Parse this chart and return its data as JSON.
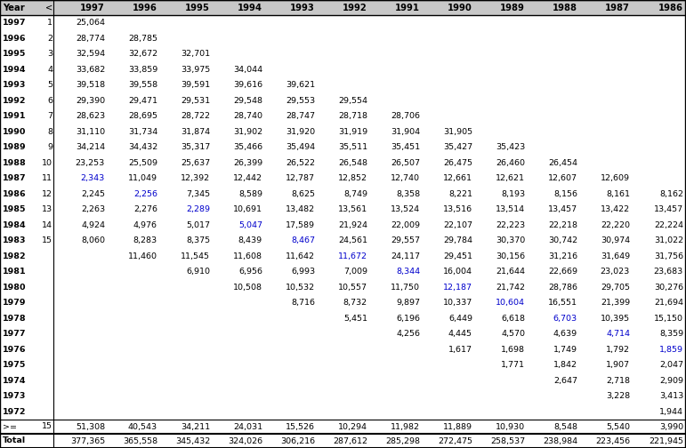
{
  "header_row": [
    "Year",
    "<",
    "1997",
    "1996",
    "1995",
    "1994",
    "1993",
    "1992",
    "1991",
    "1990",
    "1989",
    "1988",
    "1987",
    "1986"
  ],
  "rows": [
    {
      "year": "1997",
      "age": "1",
      "vals": [
        "25,064",
        "",
        "",
        "",
        "",
        "",
        "",
        "",
        "",
        "",
        "",
        ""
      ]
    },
    {
      "year": "1996",
      "age": "2",
      "vals": [
        "28,774",
        "28,785",
        "",
        "",
        "",
        "",
        "",
        "",
        "",
        "",
        "",
        ""
      ]
    },
    {
      "year": "1995",
      "age": "3",
      "vals": [
        "32,594",
        "32,672",
        "32,701",
        "",
        "",
        "",
        "",
        "",
        "",
        "",
        "",
        ""
      ]
    },
    {
      "year": "1994",
      "age": "4",
      "vals": [
        "33,682",
        "33,859",
        "33,975",
        "34,044",
        "",
        "",
        "",
        "",
        "",
        "",
        "",
        ""
      ]
    },
    {
      "year": "1993",
      "age": "5",
      "vals": [
        "39,518",
        "39,558",
        "39,591",
        "39,616",
        "39,621",
        "",
        "",
        "",
        "",
        "",
        "",
        ""
      ]
    },
    {
      "year": "1992",
      "age": "6",
      "vals": [
        "29,390",
        "29,471",
        "29,531",
        "29,548",
        "29,553",
        "29,554",
        "",
        "",
        "",
        "",
        "",
        ""
      ]
    },
    {
      "year": "1991",
      "age": "7",
      "vals": [
        "28,623",
        "28,695",
        "28,722",
        "28,740",
        "28,747",
        "28,718",
        "28,706",
        "",
        "",
        "",
        "",
        ""
      ]
    },
    {
      "year": "1990",
      "age": "8",
      "vals": [
        "31,110",
        "31,734",
        "31,874",
        "31,902",
        "31,920",
        "31,919",
        "31,904",
        "31,905",
        "",
        "",
        "",
        ""
      ]
    },
    {
      "year": "1989",
      "age": "9",
      "vals": [
        "34,214",
        "34,432",
        "35,317",
        "35,466",
        "35,494",
        "35,511",
        "35,451",
        "35,427",
        "35,423",
        "",
        "",
        ""
      ]
    },
    {
      "year": "1988",
      "age": "10",
      "vals": [
        "23,253",
        "25,509",
        "25,637",
        "26,399",
        "26,522",
        "26,548",
        "26,507",
        "26,475",
        "26,460",
        "26,454",
        "",
        ""
      ]
    },
    {
      "year": "1987",
      "age": "11",
      "vals": [
        "2,343",
        "11,049",
        "12,392",
        "12,442",
        "12,787",
        "12,852",
        "12,740",
        "12,661",
        "12,621",
        "12,607",
        "12,609",
        ""
      ]
    },
    {
      "year": "1986",
      "age": "12",
      "vals": [
        "2,245",
        "2,256",
        "7,345",
        "8,589",
        "8,625",
        "8,749",
        "8,358",
        "8,221",
        "8,193",
        "8,156",
        "8,161",
        "8,162"
      ]
    },
    {
      "year": "1985",
      "age": "13",
      "vals": [
        "2,263",
        "2,276",
        "2,289",
        "10,691",
        "13,482",
        "13,561",
        "13,524",
        "13,516",
        "13,514",
        "13,457",
        "13,422",
        "13,457"
      ]
    },
    {
      "year": "1984",
      "age": "14",
      "vals": [
        "4,924",
        "4,976",
        "5,017",
        "5,047",
        "17,589",
        "21,924",
        "22,009",
        "22,107",
        "22,223",
        "22,218",
        "22,220",
        "22,224"
      ]
    },
    {
      "year": "1983",
      "age": "15",
      "vals": [
        "8,060",
        "8,283",
        "8,375",
        "8,439",
        "8,467",
        "24,561",
        "29,557",
        "29,784",
        "30,370",
        "30,742",
        "30,974",
        "31,022"
      ]
    },
    {
      "year": "1982",
      "age": "",
      "vals": [
        "",
        "11,460",
        "11,545",
        "11,608",
        "11,642",
        "11,672",
        "24,117",
        "29,451",
        "30,156",
        "31,216",
        "31,649",
        "31,756"
      ]
    },
    {
      "year": "1981",
      "age": "",
      "vals": [
        "",
        "",
        "6,910",
        "6,956",
        "6,993",
        "7,009",
        "8,344",
        "16,004",
        "21,644",
        "22,669",
        "23,023",
        "23,683"
      ]
    },
    {
      "year": "1980",
      "age": "",
      "vals": [
        "",
        "",
        "",
        "10,508",
        "10,532",
        "10,557",
        "11,750",
        "12,187",
        "21,742",
        "28,786",
        "29,705",
        "30,276"
      ]
    },
    {
      "year": "1979",
      "age": "",
      "vals": [
        "",
        "",
        "",
        "",
        "8,716",
        "8,732",
        "9,897",
        "10,337",
        "10,604",
        "16,551",
        "21,399",
        "21,694"
      ]
    },
    {
      "year": "1978",
      "age": "",
      "vals": [
        "",
        "",
        "",
        "",
        "",
        "5,451",
        "6,196",
        "6,449",
        "6,618",
        "6,703",
        "10,395",
        "15,150"
      ]
    },
    {
      "year": "1977",
      "age": "",
      "vals": [
        "",
        "",
        "",
        "",
        "",
        "",
        "4,256",
        "4,445",
        "4,570",
        "4,639",
        "4,714",
        "8,359"
      ]
    },
    {
      "year": "1976",
      "age": "",
      "vals": [
        "",
        "",
        "",
        "",
        "",
        "",
        "",
        "1,617",
        "1,698",
        "1,749",
        "1,792",
        "1,859"
      ]
    },
    {
      "year": "1975",
      "age": "",
      "vals": [
        "",
        "",
        "",
        "",
        "",
        "",
        "",
        "",
        "1,771",
        "1,842",
        "1,907",
        "2,047"
      ]
    },
    {
      "year": "1974",
      "age": "",
      "vals": [
        "",
        "",
        "",
        "",
        "",
        "",
        "",
        "",
        "",
        "2,647",
        "2,718",
        "2,909"
      ]
    },
    {
      "year": "1973",
      "age": "",
      "vals": [
        "",
        "",
        "",
        "",
        "",
        "",
        "",
        "",
        "",
        "",
        "3,228",
        "3,413"
      ]
    },
    {
      "year": "1972",
      "age": "",
      "vals": [
        "",
        "",
        "",
        "",
        "",
        "",
        "",
        "",
        "",
        "",
        "",
        "1,944"
      ]
    }
  ],
  "footer_ge_row": {
    "label": ">=",
    "age": "15",
    "vals": [
      "51,308",
      "40,543",
      "34,211",
      "24,031",
      "15,526",
      "10,294",
      "11,982",
      "11,889",
      "10,930",
      "8,548",
      "5,540",
      "3,990"
    ]
  },
  "total_row": {
    "label": "Total",
    "vals": [
      "377,365",
      "365,558",
      "345,432",
      "324,026",
      "306,216",
      "287,612",
      "285,298",
      "272,475",
      "258,537",
      "238,984",
      "223,456",
      "221,945"
    ]
  },
  "blue_map": {
    "10": 0,
    "11": 1,
    "12": 2,
    "13": 3,
    "14": 4,
    "15": 5,
    "16": 6,
    "17": 7,
    "18": 8,
    "19": 9,
    "20": 10,
    "21": 11
  },
  "header_bg": "#c8c8c8",
  "header_text": "#000000",
  "body_bg": "#ffffff",
  "body_text": "#000000",
  "blue_text": "#0000cc",
  "font_size": 6.8,
  "header_font_size": 7.2
}
